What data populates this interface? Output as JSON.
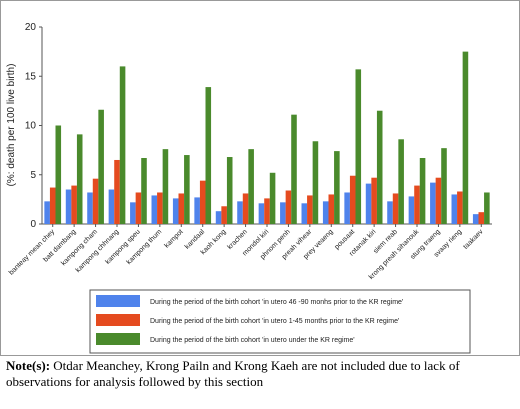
{
  "chart_data": {
    "type": "bar",
    "y_label": "(%: death per 100 live birth)",
    "categories": [
      "banteay mean chey",
      "batt dambang",
      "kampong cham",
      "kampong chhnang",
      "kampong speu",
      "kampong thum",
      "kampot",
      "kandaal",
      "kaoh kong",
      "krachen",
      "mondol kiri",
      "phnom penh",
      "preah vihear",
      "prey veaeng",
      "pousaat",
      "rotanak kiri",
      "siem reab",
      "krong preah sihanouk",
      "stung traeng",
      "svaay rieng",
      "taakaev"
    ],
    "series": [
      {
        "name": "During the period of the birth cohort 'in utero 46 -90 monhs prior to the KR regime'",
        "color": "#4f83ec",
        "values": [
          2.3,
          3.5,
          3.2,
          3.5,
          2.2,
          2.9,
          2.6,
          2.7,
          1.3,
          2.3,
          2.1,
          2.2,
          2.1,
          2.3,
          3.2,
          4.1,
          2.3,
          2.8,
          4.2,
          3.0,
          1.0
        ]
      },
      {
        "name": "During the period of the birth cohort 'in utero 1-45 months prior to the KR regime'",
        "color": "#e54b1f",
        "values": [
          3.7,
          3.9,
          4.6,
          6.5,
          3.2,
          3.2,
          3.1,
          4.4,
          1.8,
          3.1,
          2.6,
          3.4,
          2.9,
          3.0,
          4.9,
          4.7,
          3.1,
          3.9,
          4.7,
          3.3,
          1.2
        ]
      },
      {
        "name": "During the period of the birth cohort 'in utero under the KR regime'",
        "color": "#4a8a2c",
        "values": [
          10.0,
          9.1,
          11.6,
          16.0,
          6.7,
          7.6,
          7.0,
          13.9,
          6.8,
          7.6,
          5.2,
          11.1,
          8.4,
          7.4,
          15.7,
          11.5,
          8.6,
          6.7,
          7.7,
          17.5,
          3.2
        ]
      }
    ],
    "ylim": [
      0,
      20
    ],
    "yticks": [
      0,
      5,
      10,
      15,
      20
    ],
    "grid": false,
    "legend": "bottom"
  },
  "note": {
    "label": "Note(s):",
    "text": "Otdar Meanchey, Krong Pailn and Krong Kaeh are not included due to lack of observations for analysis followed by this section"
  }
}
